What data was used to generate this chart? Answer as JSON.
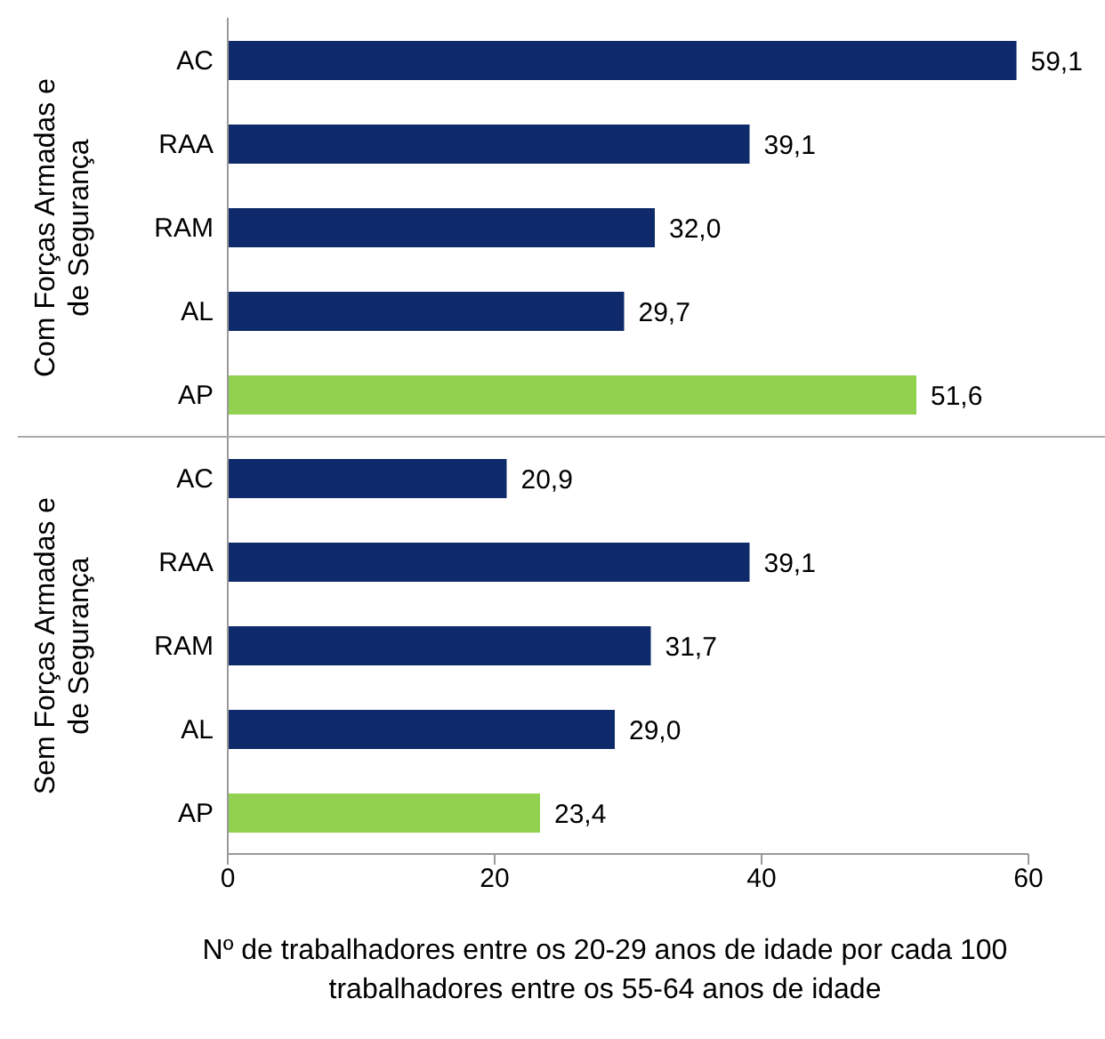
{
  "chart_data": {
    "type": "bar",
    "orientation": "horizontal",
    "categories": [
      "AC",
      "RAA",
      "RAM",
      "AL",
      "AP",
      "AC",
      "RAA",
      "RAM",
      "AL",
      "AP"
    ],
    "values": [
      59.1,
      39.1,
      32.0,
      29.7,
      51.6,
      20.9,
      39.1,
      31.7,
      29.0,
      23.4
    ],
    "colors": [
      "#0f2a6b",
      "#0f2a6b",
      "#0f2a6b",
      "#0f2a6b",
      "#92d050",
      "#0f2a6b",
      "#0f2a6b",
      "#0f2a6b",
      "#0f2a6b",
      "#92d050"
    ],
    "value_labels": [
      "59,1",
      "39,1",
      "32,0",
      "29,7",
      "51,6",
      "20,9",
      "39,1",
      "31,7",
      "29,0",
      "23,4"
    ],
    "xlim": [
      0,
      60
    ],
    "xticks": [
      0,
      20,
      40,
      60
    ],
    "xlabel": "Nº de trabalhadores entre os 20-29 anos de idade por cada 100 trabalhadores entre os 55-64 anos de idade",
    "annotations": [
      "Com Forças Armadas e de Segurança",
      "Sem Forças Armadas e de Segurança"
    ],
    "grid": false,
    "legend": false
  }
}
